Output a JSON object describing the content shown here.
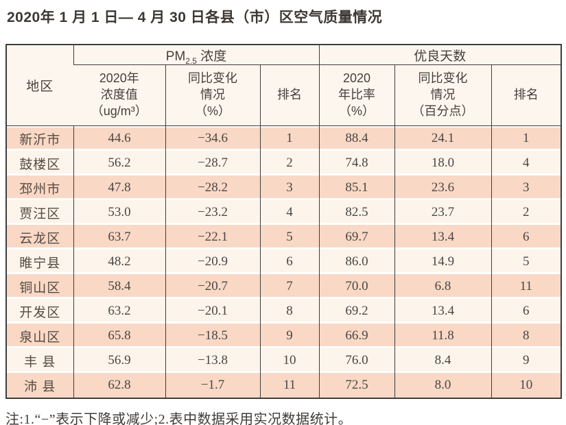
{
  "title": "2020年 1 月 1 日— 4 月 30 日各县（市）区空气质量情况",
  "colors": {
    "row_odd": "#f9d8c6",
    "row_even": "#fdf4ec",
    "header_bg": "#fdf6ee",
    "border": "#3c3c3c"
  },
  "table": {
    "header": {
      "region": "地区",
      "pm25_group": {
        "prefix": "PM",
        "sub": "2.5",
        "suffix": " 浓度"
      },
      "good_days_group": "优良天数",
      "sub_headers": {
        "pm_value": "2020年\n浓度值\n（ug/m³）",
        "pm_change": "同比变化\n情况\n（%）",
        "pm_rank": "排名",
        "good_rate": "2020\n年比率\n（%）",
        "good_change": "同比变化\n情况\n（百分点）",
        "good_rank": "排名"
      }
    },
    "rows": [
      {
        "region": "新沂市",
        "pm_value": "44.6",
        "pm_change": "−34.6",
        "pm_rank": "1",
        "good_rate": "88.4",
        "good_change": "24.1",
        "good_rank": "1"
      },
      {
        "region": "鼓楼区",
        "pm_value": "56.2",
        "pm_change": "−28.7",
        "pm_rank": "2",
        "good_rate": "74.8",
        "good_change": "18.0",
        "good_rank": "4"
      },
      {
        "region": "邳州市",
        "pm_value": "47.8",
        "pm_change": "−28.2",
        "pm_rank": "3",
        "good_rate": "85.1",
        "good_change": "23.6",
        "good_rank": "3"
      },
      {
        "region": "贾汪区",
        "pm_value": "53.0",
        "pm_change": "−23.2",
        "pm_rank": "4",
        "good_rate": "82.5",
        "good_change": "23.7",
        "good_rank": "2"
      },
      {
        "region": "云龙区",
        "pm_value": "63.7",
        "pm_change": "−22.1",
        "pm_rank": "5",
        "good_rate": "69.7",
        "good_change": "13.4",
        "good_rank": "6"
      },
      {
        "region": "睢宁县",
        "pm_value": "48.2",
        "pm_change": "−20.9",
        "pm_rank": "6",
        "good_rate": "86.0",
        "good_change": "14.9",
        "good_rank": "5"
      },
      {
        "region": "铜山区",
        "pm_value": "58.4",
        "pm_change": "−20.7",
        "pm_rank": "7",
        "good_rate": "70.0",
        "good_change": "6.8",
        "good_rank": "11"
      },
      {
        "region": "开发区",
        "pm_value": "63.2",
        "pm_change": "−20.1",
        "pm_rank": "8",
        "good_rate": "69.2",
        "good_change": "13.4",
        "good_rank": "6"
      },
      {
        "region": "泉山区",
        "pm_value": "65.8",
        "pm_change": "−18.5",
        "pm_rank": "9",
        "good_rate": "66.9",
        "good_change": "11.8",
        "good_rank": "8"
      },
      {
        "region": "丰 县",
        "pm_value": "56.9",
        "pm_change": "−13.8",
        "pm_rank": "10",
        "good_rate": "76.0",
        "good_change": "8.4",
        "good_rank": "9"
      },
      {
        "region": "沛 县",
        "pm_value": "62.8",
        "pm_change": "−1.7",
        "pm_rank": "11",
        "good_rate": "72.5",
        "good_change": "8.0",
        "good_rank": "10"
      }
    ]
  },
  "note": "注:1.“−”表示下降或减少;2.表中数据采用实况数据统计。"
}
